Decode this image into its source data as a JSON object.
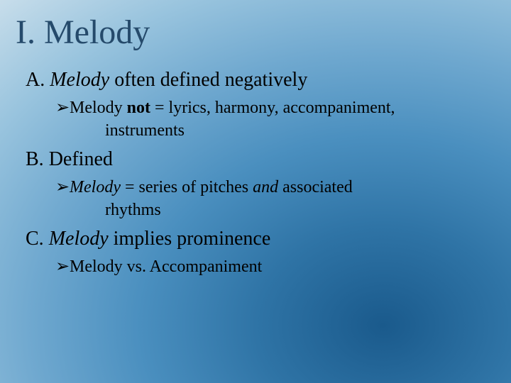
{
  "slide": {
    "title": "I.  Melody",
    "sections": [
      {
        "label_prefix": "A.  ",
        "label_italic": "Melody",
        "label_rest": " often defined negatively",
        "bullets": [
          {
            "arrow": "➢",
            "pre": "Melody ",
            "bold": "not",
            "post": " = lyrics, harmony, accompaniment,",
            "cont": "instruments"
          }
        ]
      },
      {
        "label_prefix": "B.  ",
        "label_italic": "",
        "label_rest": "Defined",
        "bullets": [
          {
            "arrow": "➢",
            "italic1": "Melody",
            "mid": " = series of pitches ",
            "italic2": "and",
            "post2": " associated",
            "cont": "rhythms"
          }
        ]
      },
      {
        "label_prefix": "C. ",
        "label_italic": "Melody",
        "label_rest": " implies prominence",
        "bullets": [
          {
            "arrow": "➢",
            "text": "Melody vs. Accompaniment"
          }
        ]
      }
    ]
  },
  "colors": {
    "title": "#254a6b",
    "text": "#000000"
  }
}
